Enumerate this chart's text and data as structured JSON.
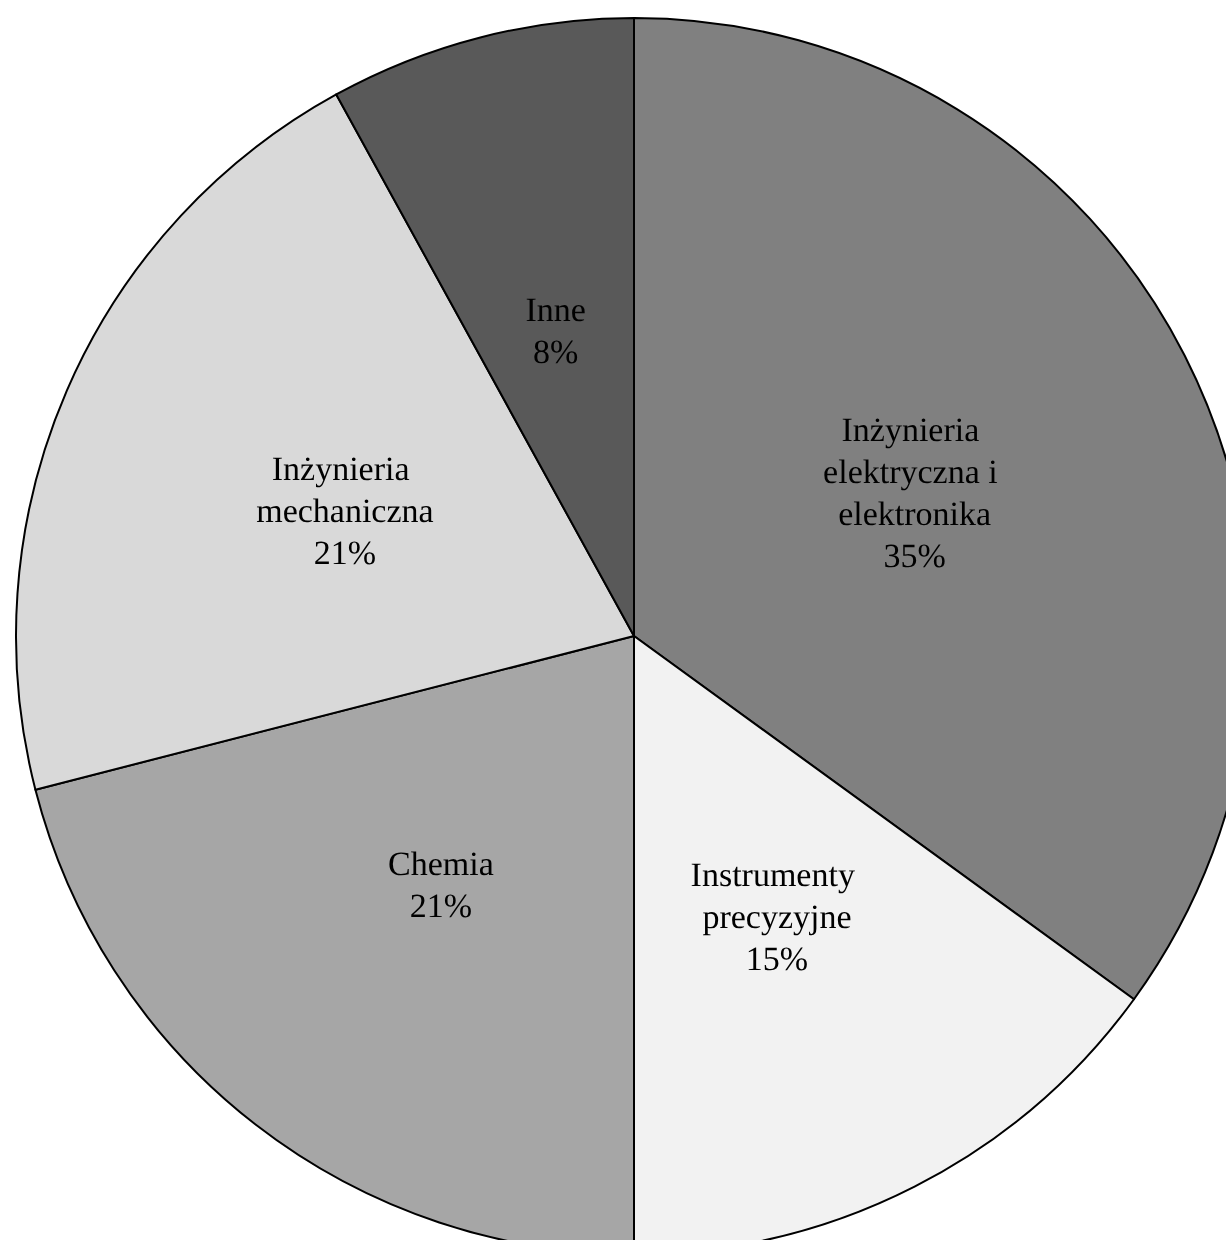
{
  "chart_data": {
    "type": "pie",
    "categories": [
      "Inżynieria elektryczna i elektronika",
      "Instrumenty precyzyjne",
      "Chemia",
      "Inżynieria mechaniczna",
      "Inne"
    ],
    "values": [
      35,
      15,
      21,
      21,
      8
    ],
    "colors": [
      "#808080",
      "#f2f2f2",
      "#a6a6a6",
      "#d9d9d9",
      "#595959"
    ],
    "value_labels": [
      "35%",
      "15%",
      "21%",
      "21%",
      "8%"
    ],
    "legend": false
  }
}
